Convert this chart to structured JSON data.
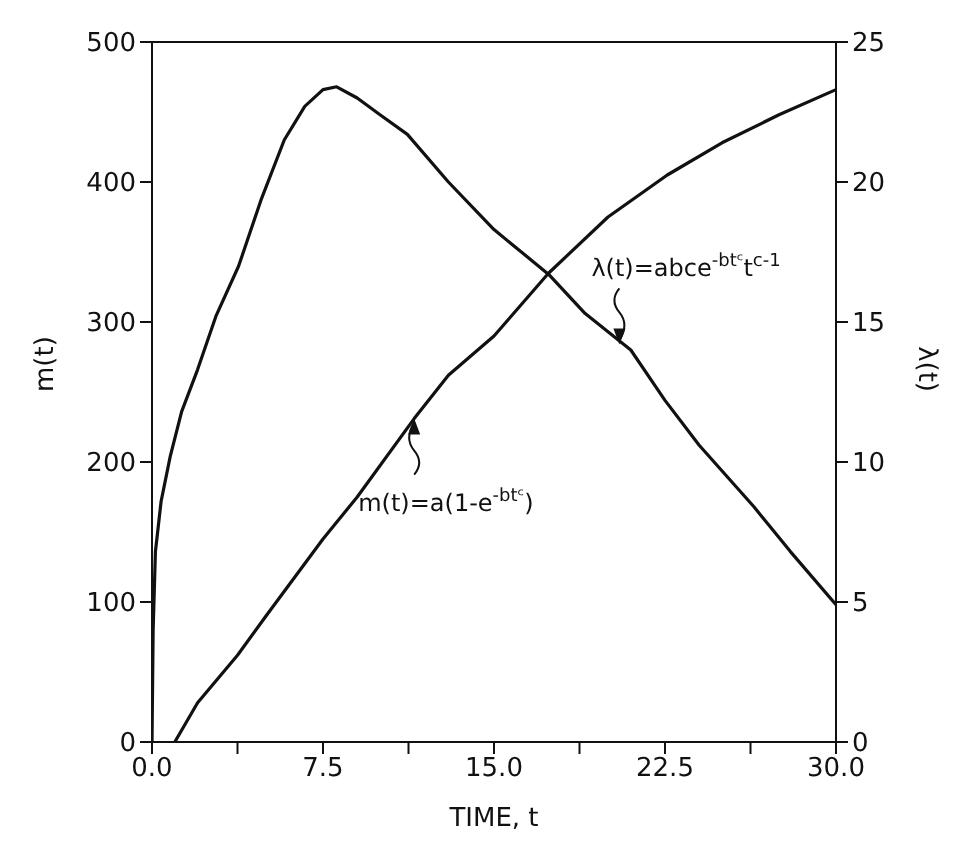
{
  "chart_data": {
    "type": "line",
    "xlabel": "TIME, t",
    "ylabel": "m(t)",
    "y2label": "λ(t)",
    "xlim": [
      0,
      30
    ],
    "xticks": [
      {
        "value": 0,
        "label": "0.0"
      },
      {
        "value": 3.75,
        "label": null
      },
      {
        "value": 7.5,
        "label": "7.5"
      },
      {
        "value": 11.25,
        "label": null
      },
      {
        "value": 15,
        "label": "15.0"
      },
      {
        "value": 18.75,
        "label": null
      },
      {
        "value": 22.5,
        "label": "22.5"
      },
      {
        "value": 26.25,
        "label": null
      },
      {
        "value": 30,
        "label": "30.0"
      }
    ],
    "ylim": [
      0,
      500
    ],
    "yticks": [
      0,
      100,
      200,
      300,
      400,
      500
    ],
    "y2lim": [
      0,
      25
    ],
    "y2ticks": [
      0,
      5,
      10,
      15,
      20,
      25
    ],
    "marker": "none",
    "line_style": "solid",
    "series": [
      {
        "color": "#111111",
        "x": [
          1,
          2,
          3.75,
          5,
          7.5,
          9,
          11.5,
          13,
          15,
          17.4,
          20,
          22.6,
          25,
          27.5,
          30
        ],
        "values": [
          0,
          28,
          62,
          90,
          145,
          175,
          231,
          262,
          290,
          335,
          375,
          405,
          428,
          448,
          466
        ]
      },
      {
        "color": "#111111",
        "axis": "y2",
        "x": [
          0,
          0.05,
          0.15,
          0.4,
          0.8,
          1.3,
          2,
          2.8,
          3.8,
          4.8,
          5.8,
          6.7,
          7.5,
          8.1,
          9,
          10,
          11.2,
          13,
          15,
          17.4,
          19,
          21,
          22.5,
          24,
          26.4,
          28,
          30
        ],
        "values": [
          0,
          4,
          6.8,
          8.6,
          10.2,
          11.8,
          13.3,
          15.2,
          17,
          19.4,
          21.5,
          22.7,
          23.3,
          23.4,
          23,
          22.4,
          21.7,
          20,
          18.3,
          16.7,
          15.3,
          14,
          12.2,
          10.6,
          8.4,
          6.8,
          4.9
        ]
      }
    ],
    "annotations": [
      {
        "text": "m(t)=a(1-e$^{-btᶜ}$)",
        "x": 11.5,
        "y": 231
      },
      {
        "text": "λ(t)=abce$^{-btᶜ}$t$^{c-1}$",
        "x": 20.5,
        "y": 284
      }
    ]
  }
}
